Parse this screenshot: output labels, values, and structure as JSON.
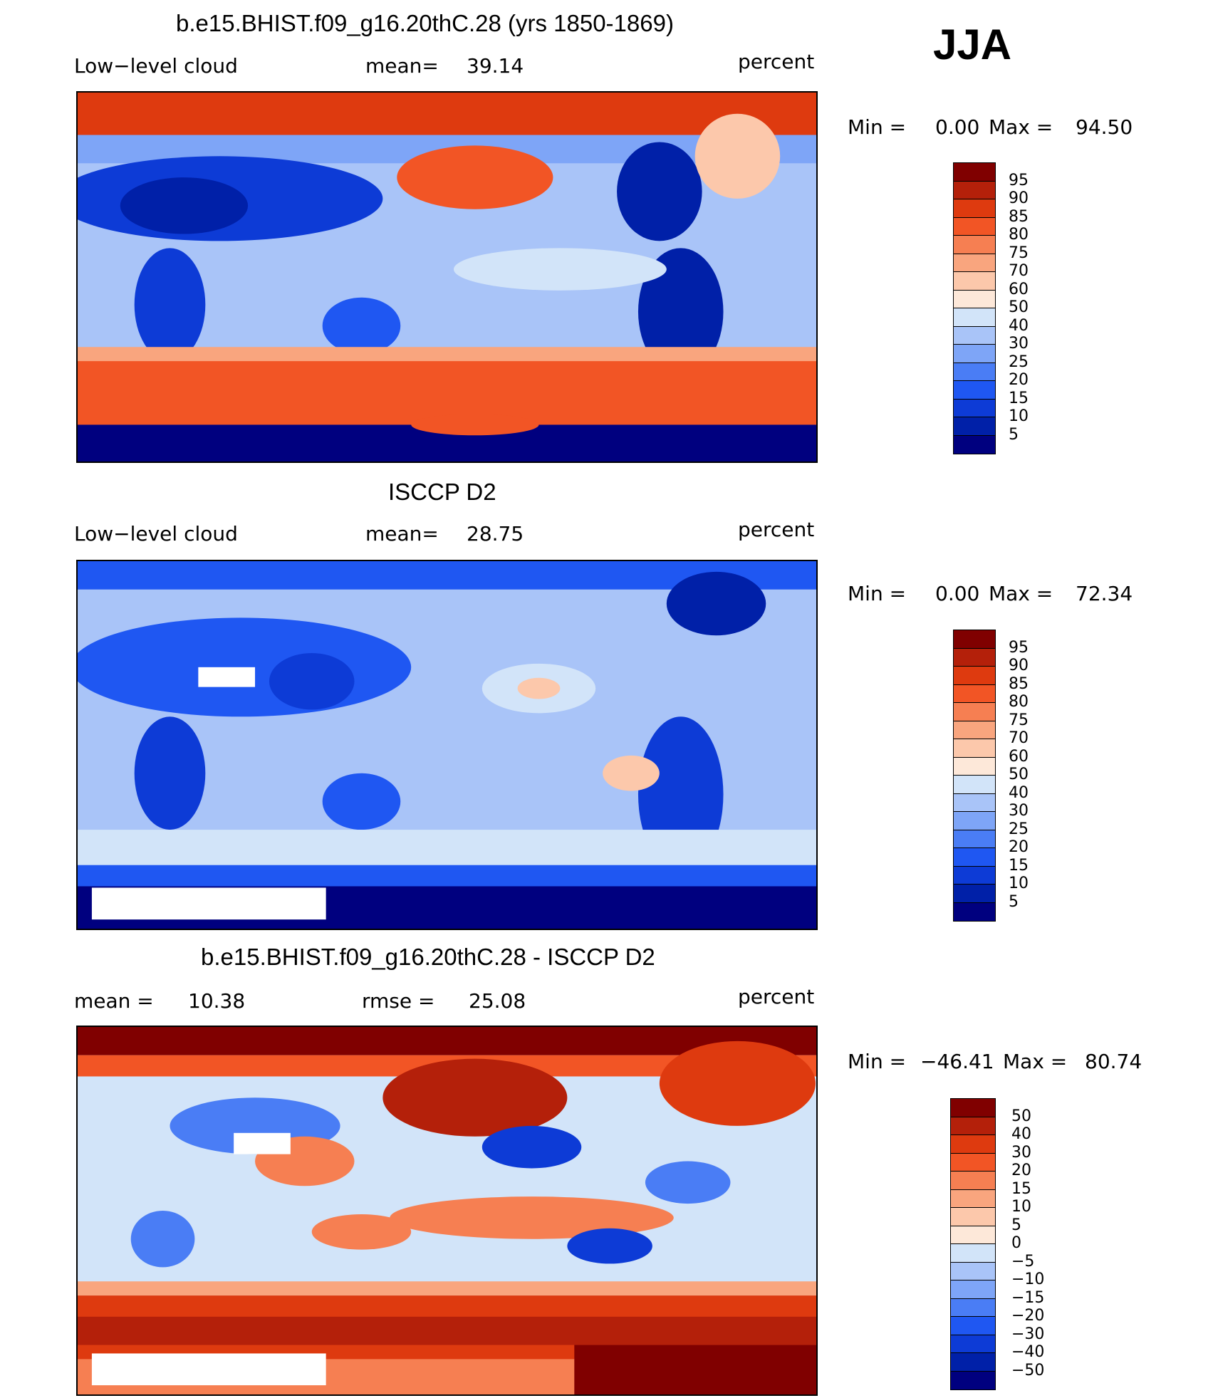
{
  "season": "JJA",
  "colors": {
    "abs_levels": [
      "#00007f",
      "#0020a8",
      "#0d3bd6",
      "#1f57f2",
      "#4a7df5",
      "#7ea5f7",
      "#a9c4f8",
      "#d2e4f9",
      "#fde8d9",
      "#fcc8ab",
      "#f9a57e",
      "#f67f52",
      "#f25525",
      "#de3a0f",
      "#b4200a",
      "#800000"
    ],
    "diff_levels": [
      "#00007f",
      "#0020a8",
      "#0d3bd6",
      "#1f57f2",
      "#4a7df5",
      "#7ea5f7",
      "#a9c4f8",
      "#d2e4f9",
      "#fde8d9",
      "#fcc8ab",
      "#f9a57e",
      "#f67f52",
      "#f25525",
      "#de3a0f",
      "#b4200a",
      "#800000"
    ]
  },
  "panels": [
    {
      "title": "b.e15.BHIST.f09_g16.20thC.28 (yrs 1850-1869)",
      "left_label": "Low−level cloud",
      "mid_label": "mean=",
      "mid_value": "39.14",
      "right_label": "percent",
      "minmax": {
        "min_label": "Min  =",
        "min": "0.00",
        "max_label": "Max  =",
        "max": "94.50"
      },
      "ticks": [
        "95",
        "90",
        "85",
        "80",
        "75",
        "70",
        "60",
        "50",
        "40",
        "30",
        "25",
        "20",
        "15",
        "10",
        "5"
      ]
    },
    {
      "title": "ISCCP D2",
      "left_label": "Low−level cloud",
      "mid_label": "mean=",
      "mid_value": "28.75",
      "right_label": "percent",
      "minmax": {
        "min_label": "Min  =",
        "min": "0.00",
        "max_label": "Max  =",
        "max": "72.34"
      },
      "ticks": [
        "95",
        "90",
        "85",
        "80",
        "75",
        "70",
        "60",
        "50",
        "40",
        "30",
        "25",
        "20",
        "15",
        "10",
        "5"
      ]
    },
    {
      "title": "b.e15.BHIST.f09_g16.20thC.28 - ISCCP D2",
      "left_label": "mean  =",
      "left_value": "10.38",
      "mid_label": "rmse  =",
      "mid_value": "25.08",
      "right_label": "percent",
      "minmax": {
        "min_label": "Min  =",
        "min": "−46.41",
        "max_label": "Max  =",
        "max": "80.74"
      },
      "ticks": [
        "50",
        "40",
        "30",
        "20",
        "15",
        "10",
        "5",
        "0",
        "−5",
        "−10",
        "−15",
        "−20",
        "−30",
        "−40",
        "−50"
      ]
    }
  ]
}
